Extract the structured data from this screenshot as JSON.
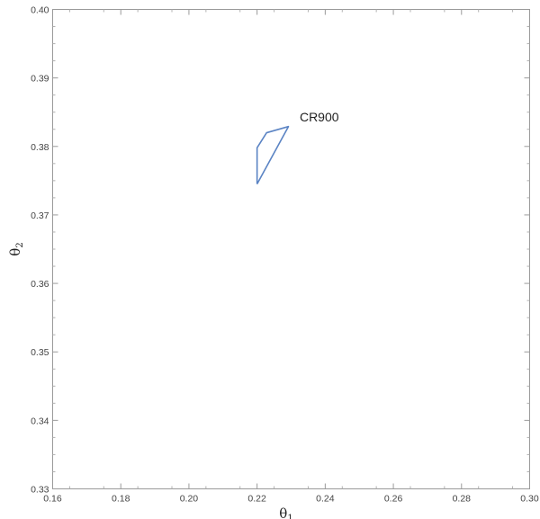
{
  "chart_data": {
    "type": "line",
    "title": "",
    "xlabel": "θ",
    "xlabel_sub": "1",
    "ylabel": "θ",
    "ylabel_sub": "2",
    "xlim": [
      0.16,
      0.3
    ],
    "ylim": [
      0.33,
      0.4
    ],
    "xticks": [
      "0.16",
      "0.18",
      "0.20",
      "0.22",
      "0.24",
      "0.26",
      "0.28",
      "0.30"
    ],
    "yticks": [
      "0.33",
      "0.34",
      "0.35",
      "0.36",
      "0.37",
      "0.38",
      "0.39",
      "0.40"
    ],
    "grid": false,
    "series": [
      {
        "name": "CR900",
        "color": "#5b84c4",
        "closed": true,
        "points": [
          [
            0.22,
            0.3745
          ],
          [
            0.22,
            0.3798
          ],
          [
            0.2228,
            0.382
          ],
          [
            0.2292,
            0.3829
          ],
          [
            0.22,
            0.3745
          ]
        ]
      }
    ],
    "annotations": [
      {
        "text": "CR900",
        "x": 0.2325,
        "y": 0.3843
      }
    ]
  }
}
